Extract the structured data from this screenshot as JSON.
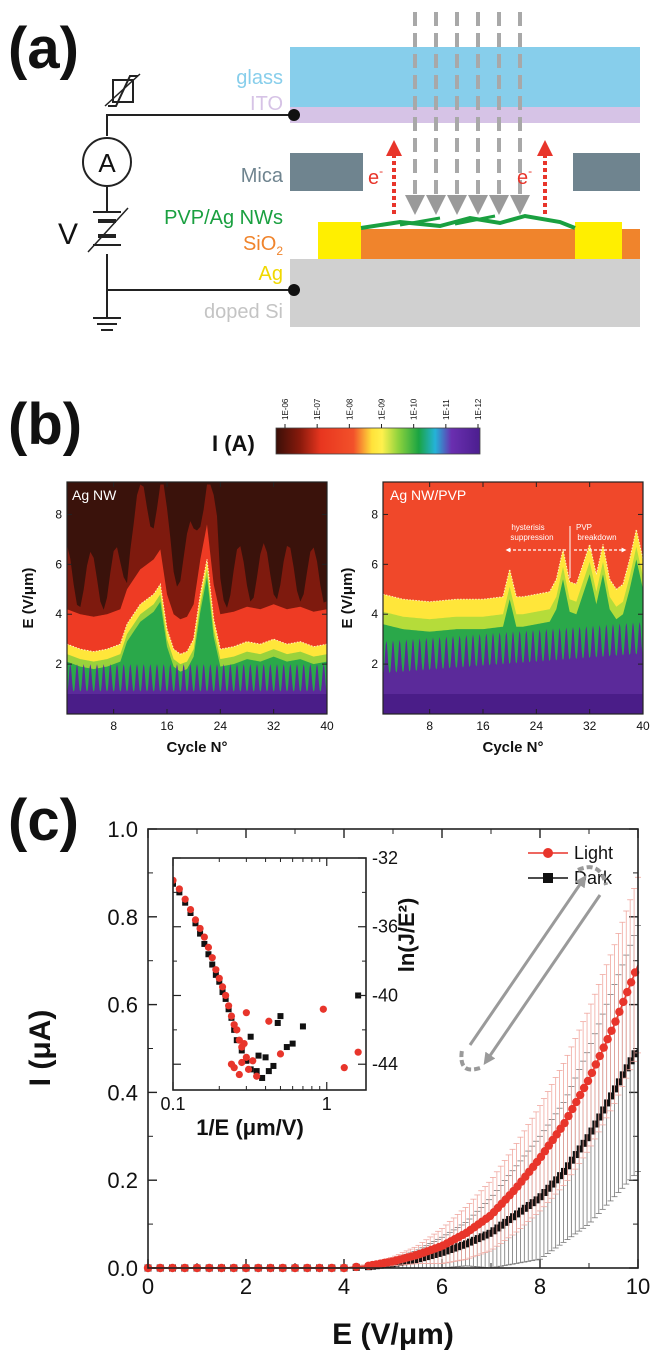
{
  "panels": {
    "a": "(a)",
    "b": "(b)",
    "c": "(c)"
  },
  "schematic": {
    "layers": {
      "glass": "glass",
      "ito": "ITO",
      "mica": "Mica",
      "pvp": "PVP/Ag NWs",
      "sio2": "SiO",
      "sio2_sub": "2",
      "ag": "Ag",
      "si": "doped Si"
    },
    "ammeter": "A",
    "voltage": "V",
    "electron": "e",
    "electron_sup": "-",
    "colors": {
      "glass": "#87ceeb",
      "ito": "#d6c3e6",
      "mica": "#6f848f",
      "sio2": "#f0842c",
      "ag": "#ffef00",
      "si": "#d0d0d0",
      "nw": "#1aa040",
      "arrow": "#a8a8a8",
      "electron_arrow": "#e8352b"
    }
  },
  "colorbar": {
    "label": "I (A)",
    "ticks": [
      "1E-06",
      "1E-07",
      "1E-08",
      "1E-09",
      "1E-10",
      "1E-11",
      "1E-12"
    ]
  },
  "maps": {
    "left": {
      "title": "Ag NW",
      "ylabel": "E (V/μm)",
      "xlabel": "Cycle N°"
    },
    "right": {
      "title": "Ag NW/PVP",
      "ylabel": "E (V/μm)",
      "xlabel": "Cycle N°",
      "annot_left_1": "hysterisis",
      "annot_left_2": "suppression",
      "annot_right_1": "PVP",
      "annot_right_2": "breakdown"
    },
    "xticks": [
      "8",
      "16",
      "24",
      "32",
      "40"
    ],
    "yticks": [
      "2",
      "4",
      "6",
      "8"
    ]
  },
  "chart_data": [
    {
      "type": "heatmap",
      "title": "Ag NW",
      "xlabel": "Cycle N°",
      "ylabel": "E (V/μm)",
      "xlim": [
        1,
        40
      ],
      "ylim": [
        0,
        9.3
      ],
      "colorbar": {
        "label": "I (A)",
        "range": [
          "1E-06",
          "1E-12"
        ]
      },
      "boundary_x": [
        1,
        3,
        5,
        7,
        9,
        10,
        11,
        12,
        13,
        14,
        15,
        16,
        17,
        18,
        19,
        20,
        21,
        22,
        23,
        24,
        26,
        28,
        30,
        32,
        34,
        36,
        38,
        40
      ],
      "boundary_y": [
        2.8,
        2.6,
        2.5,
        2.6,
        2.8,
        3.6,
        4.0,
        4.4,
        4.6,
        4.8,
        5.2,
        3.4,
        2.6,
        2.4,
        2.5,
        3.0,
        4.8,
        6.2,
        3.8,
        2.6,
        2.7,
        2.9,
        2.8,
        3.0,
        2.8,
        2.9,
        2.7,
        2.8
      ]
    },
    {
      "type": "heatmap",
      "title": "Ag NW/PVP",
      "xlabel": "Cycle N°",
      "ylabel": "E (V/μm)",
      "xlim": [
        1,
        40
      ],
      "ylim": [
        0,
        9.3
      ],
      "colorbar": {
        "label": "I (A)",
        "range": [
          "1E-06",
          "1E-12"
        ]
      },
      "boundary_x": [
        1,
        4,
        8,
        12,
        16,
        19,
        20,
        21,
        22,
        24,
        26,
        27,
        28,
        29,
        30,
        31,
        32,
        33,
        34,
        35,
        36,
        37,
        38,
        39,
        40
      ],
      "boundary_y": [
        4.8,
        4.6,
        4.5,
        4.6,
        4.6,
        4.7,
        5.8,
        4.7,
        4.7,
        4.8,
        4.9,
        5.4,
        6.6,
        5.3,
        5.2,
        6.0,
        6.8,
        5.6,
        6.8,
        5.4,
        5.0,
        5.2,
        6.2,
        7.4,
        6.2
      ]
    },
    {
      "type": "scatter",
      "title": "",
      "xlabel": "E (V/μm)",
      "ylabel": "I (μA)",
      "xlim": [
        0,
        10
      ],
      "ylim": [
        0,
        1.0
      ],
      "xticks": [
        "0",
        "2",
        "4",
        "6",
        "8",
        "10"
      ],
      "yticks": [
        "0.0",
        "0.2",
        "0.4",
        "0.6",
        "0.8",
        "1.0"
      ],
      "legend_position": "top-right",
      "series": [
        {
          "name": "Light",
          "color": "#e8352b",
          "x": [
            0,
            1,
            2,
            3,
            4,
            4.5,
            5,
            5.5,
            6,
            6.5,
            7,
            7.5,
            8,
            8.5,
            9,
            9.5,
            10
          ],
          "values": [
            0.0,
            0.0,
            0.0,
            0.0,
            0.0,
            0.005,
            0.015,
            0.03,
            0.05,
            0.08,
            0.12,
            0.18,
            0.25,
            0.33,
            0.43,
            0.55,
            0.69
          ],
          "error": [
            0.0,
            0.0,
            0.0,
            0.0,
            0.0,
            0.004,
            0.01,
            0.02,
            0.04,
            0.06,
            0.08,
            0.1,
            0.12,
            0.14,
            0.16,
            0.18,
            0.2
          ]
        },
        {
          "name": "Dark",
          "color": "#111111",
          "x": [
            0,
            1,
            2,
            3,
            4,
            4.5,
            5,
            5.5,
            6,
            6.5,
            7,
            7.5,
            8,
            8.5,
            9,
            9.5,
            10
          ],
          "values": [
            0.0,
            0.0,
            0.0,
            0.0,
            0.0,
            0.003,
            0.01,
            0.02,
            0.035,
            0.055,
            0.08,
            0.12,
            0.16,
            0.22,
            0.3,
            0.4,
            0.5
          ],
          "error": [
            0.0,
            0.0,
            0.0,
            0.0,
            0.0,
            0.004,
            0.01,
            0.02,
            0.035,
            0.05,
            0.08,
            0.11,
            0.14,
            0.16,
            0.2,
            0.24,
            0.28
          ]
        }
      ]
    },
    {
      "type": "scatter",
      "title": "",
      "xlabel": "1/E (μm/V)",
      "ylabel": "ln(J/E²)",
      "xscale": "log",
      "xlim": [
        0.1,
        1.8
      ],
      "ylim": [
        -45.5,
        -32
      ],
      "xticks": [
        "0.1",
        "1"
      ],
      "yticks": [
        "-32",
        "-36",
        "-40",
        "-44"
      ],
      "series": [
        {
          "name": "Light",
          "color": "#e8352b",
          "x": [
            0.1,
            0.11,
            0.12,
            0.13,
            0.14,
            0.15,
            0.16,
            0.17,
            0.18,
            0.19,
            0.2,
            0.21,
            0.22,
            0.23,
            0.24,
            0.25,
            0.26,
            0.27,
            0.28,
            0.3,
            0.25,
            0.28,
            0.31,
            0.27,
            0.29,
            0.33,
            0.24,
            0.35,
            0.42,
            0.5,
            0.3,
            0.95,
            1.3,
            1.6
          ],
          "values": [
            -33.3,
            -33.8,
            -34.4,
            -35.0,
            -35.6,
            -36.1,
            -36.6,
            -37.2,
            -37.8,
            -38.5,
            -39.0,
            -39.5,
            -40.0,
            -40.6,
            -41.2,
            -41.7,
            -42.0,
            -42.6,
            -43.0,
            -43.6,
            -44.2,
            -43.9,
            -44.3,
            -44.6,
            -42.8,
            -43.8,
            -44.0,
            -44.7,
            -41.5,
            -43.4,
            -41.0,
            -40.8,
            -44.2,
            -43.3
          ]
        },
        {
          "name": "Dark",
          "color": "#111111",
          "x": [
            0.1,
            0.11,
            0.12,
            0.13,
            0.14,
            0.15,
            0.16,
            0.17,
            0.18,
            0.19,
            0.2,
            0.21,
            0.22,
            0.23,
            0.24,
            0.25,
            0.26,
            0.28,
            0.3,
            0.32,
            0.35,
            0.38,
            0.4,
            0.45,
            0.5,
            0.55,
            0.6,
            0.32,
            0.36,
            0.42,
            0.48,
            0.7,
            1.6
          ],
          "values": [
            -33.5,
            -34.0,
            -34.6,
            -35.2,
            -35.8,
            -36.4,
            -37.0,
            -37.6,
            -38.2,
            -38.8,
            -39.2,
            -39.8,
            -40.2,
            -40.8,
            -41.3,
            -42.0,
            -42.6,
            -43.2,
            -43.8,
            -44.3,
            -44.4,
            -44.8,
            -43.6,
            -44.1,
            -41.2,
            -43.0,
            -42.8,
            -42.4,
            -43.5,
            -44.4,
            -41.6,
            -41.8,
            -40.0
          ]
        }
      ]
    }
  ]
}
